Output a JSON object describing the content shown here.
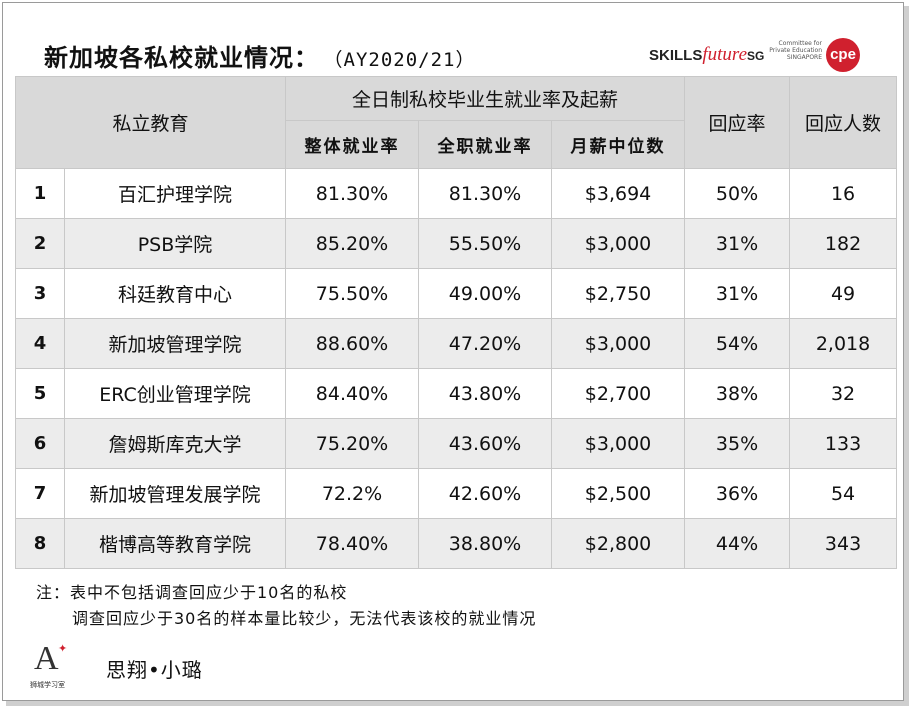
{
  "title": {
    "main": "新加坡各私校就业情况：",
    "year": "（AY2020/21）"
  },
  "logos": {
    "skills": "SKILLS",
    "future": "future",
    "sg": "SG",
    "cpe_text": "Committee for Private Education SINGAPORE",
    "cpe_mark": "cpe"
  },
  "table": {
    "header_school": "私立教育",
    "header_group": "全日制私校毕业生就业率及起薪",
    "header_overall": "整体就业率",
    "header_fulltime": "全职就业率",
    "header_salary": "月薪中位数",
    "header_rate": "回应率",
    "header_count": "回应人数",
    "rows": [
      {
        "no": "1",
        "name": "百汇护理学院",
        "overall": "81.30%",
        "fulltime": "81.30%",
        "salary": "$3,694",
        "rate": "50%",
        "count": "16"
      },
      {
        "no": "2",
        "name": "PSB学院",
        "overall": "85.20%",
        "fulltime": "55.50%",
        "salary": "$3,000",
        "rate": "31%",
        "count": "182"
      },
      {
        "no": "3",
        "name": "科廷教育中心",
        "overall": "75.50%",
        "fulltime": "49.00%",
        "salary": "$2,750",
        "rate": "31%",
        "count": "49"
      },
      {
        "no": "4",
        "name": "新加坡管理学院",
        "overall": "88.60%",
        "fulltime": "47.20%",
        "salary": "$3,000",
        "rate": "54%",
        "count": "2,018"
      },
      {
        "no": "5",
        "name": "ERC创业管理学院",
        "overall": "84.40%",
        "fulltime": "43.80%",
        "salary": "$2,700",
        "rate": "38%",
        "count": "32"
      },
      {
        "no": "6",
        "name": "詹姆斯库克大学",
        "overall": "75.20%",
        "fulltime": "43.60%",
        "salary": "$3,000",
        "rate": "35%",
        "count": "133"
      },
      {
        "no": "7",
        "name": "新加坡管理发展学院",
        "overall": "72.2%",
        "fulltime": "42.60%",
        "salary": "$2,500",
        "rate": "36%",
        "count": "54"
      },
      {
        "no": "8",
        "name": "楷博高等教育学院",
        "overall": "78.40%",
        "fulltime": "38.80%",
        "salary": "$2,800",
        "rate": "44%",
        "count": "343"
      }
    ]
  },
  "notes": {
    "line1": "注：表中不包括调查回应少于10名的私校",
    "line2": "调查回应少于30名的样本量比较少，无法代表该校的就业情况"
  },
  "footer": {
    "logo_letter": "A",
    "logo_sub": "狮城学习室",
    "author": "思翔•小璐"
  }
}
